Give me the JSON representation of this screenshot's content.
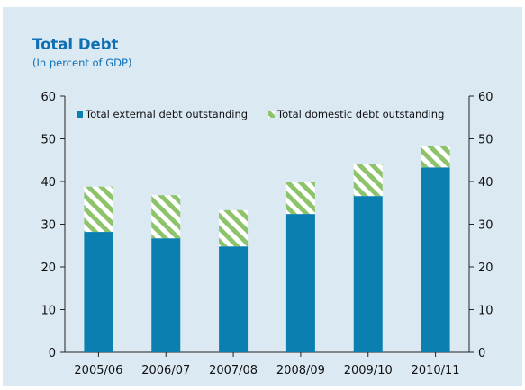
{
  "chart_data": {
    "type": "bar",
    "stacked": true,
    "title": "Total Debt",
    "subtitle": "(In percent of GDP)",
    "categories": [
      "2005/06",
      "2006/07",
      "2007/08",
      "2008/09",
      "2009/10",
      "2010/11"
    ],
    "series": [
      {
        "name": "Total external debt outstanding",
        "values": [
          28.2,
          26.7,
          24.8,
          32.4,
          36.6,
          43.3
        ],
        "color": "#0a7fb0"
      },
      {
        "name": "Total domestic debt outstanding",
        "values": [
          10.6,
          10.1,
          8.5,
          7.6,
          7.4,
          5.0
        ],
        "color": "#8cc36b",
        "pattern": "diagonal-stripes"
      }
    ],
    "ylim": [
      0,
      60
    ],
    "yticks": [
      "0",
      "10",
      "20",
      "30",
      "40",
      "50",
      "60"
    ],
    "secondary_axis": true,
    "grid": false,
    "legend_position": "top",
    "panel_color": "#dbe9f3"
  }
}
